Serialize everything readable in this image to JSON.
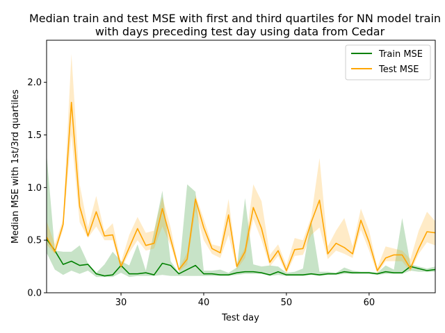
{
  "chart_data": {
    "type": "line",
    "title_line1": "Median train and test MSE with first and third quartiles for NN model train",
    "title_line2": "with days preceding test day using data from Cedar",
    "xlabel": "Test day",
    "ylabel": "Median MSE with 1st/3rd quartiles",
    "xlim": [
      21,
      68
    ],
    "ylim": [
      0,
      2.4
    ],
    "xticks": [
      30,
      40,
      50,
      60
    ],
    "yticks": [
      0.0,
      0.5,
      1.0,
      1.5,
      2.0
    ],
    "xtick_labels": [
      "30",
      "40",
      "50",
      "60"
    ],
    "ytick_labels": [
      "0.0",
      "0.5",
      "1.0",
      "1.5",
      "2.0"
    ],
    "legend_position": "top-right",
    "grid": false,
    "x": [
      21,
      22,
      23,
      24,
      25,
      26,
      27,
      28,
      29,
      30,
      31,
      32,
      33,
      34,
      35,
      36,
      37,
      38,
      39,
      40,
      41,
      42,
      43,
      44,
      45,
      46,
      47,
      48,
      49,
      50,
      51,
      52,
      53,
      54,
      55,
      56,
      57,
      58,
      59,
      60,
      61,
      62,
      63,
      64,
      65,
      66,
      67,
      68
    ],
    "series": [
      {
        "name": "Train MSE",
        "color": "#008000",
        "fill_color": "#008000",
        "median": [
          0.51,
          0.4,
          0.27,
          0.3,
          0.26,
          0.27,
          0.18,
          0.16,
          0.17,
          0.26,
          0.18,
          0.18,
          0.19,
          0.17,
          0.28,
          0.26,
          0.18,
          0.22,
          0.26,
          0.18,
          0.18,
          0.17,
          0.17,
          0.19,
          0.2,
          0.2,
          0.19,
          0.17,
          0.2,
          0.17,
          0.17,
          0.17,
          0.18,
          0.17,
          0.18,
          0.18,
          0.2,
          0.19,
          0.19,
          0.19,
          0.18,
          0.2,
          0.19,
          0.19,
          0.25,
          0.23,
          0.21,
          0.22
        ],
        "q1": [
          0.38,
          0.22,
          0.17,
          0.21,
          0.18,
          0.21,
          0.15,
          0.15,
          0.15,
          0.19,
          0.15,
          0.16,
          0.16,
          0.16,
          0.17,
          0.16,
          0.16,
          0.16,
          0.16,
          0.16,
          0.16,
          0.16,
          0.16,
          0.17,
          0.18,
          0.18,
          0.18,
          0.16,
          0.17,
          0.16,
          0.16,
          0.16,
          0.17,
          0.16,
          0.17,
          0.17,
          0.18,
          0.18,
          0.18,
          0.18,
          0.17,
          0.18,
          0.18,
          0.18,
          0.21,
          0.2,
          0.2,
          0.2
        ],
        "q3": [
          1.32,
          0.4,
          0.39,
          0.39,
          0.45,
          0.28,
          0.19,
          0.27,
          0.39,
          0.3,
          0.26,
          0.46,
          0.21,
          0.58,
          0.97,
          0.3,
          0.19,
          1.03,
          0.96,
          0.21,
          0.21,
          0.22,
          0.19,
          0.24,
          0.9,
          0.27,
          0.25,
          0.26,
          0.25,
          0.19,
          0.2,
          0.23,
          0.69,
          0.2,
          0.2,
          0.19,
          0.24,
          0.21,
          0.2,
          0.2,
          0.19,
          0.26,
          0.22,
          0.71,
          0.27,
          0.25,
          0.23,
          0.25
        ]
      },
      {
        "name": "Test MSE",
        "color": "#ffa500",
        "fill_color": "#ffa500",
        "median": [
          0.53,
          0.39,
          0.65,
          1.81,
          0.82,
          0.54,
          0.77,
          0.54,
          0.55,
          0.25,
          0.43,
          0.61,
          0.45,
          0.47,
          0.8,
          0.51,
          0.22,
          0.32,
          0.89,
          0.62,
          0.42,
          0.38,
          0.74,
          0.25,
          0.39,
          0.81,
          0.61,
          0.29,
          0.4,
          0.21,
          0.41,
          0.42,
          0.67,
          0.88,
          0.37,
          0.47,
          0.43,
          0.37,
          0.69,
          0.48,
          0.21,
          0.33,
          0.36,
          0.36,
          0.23,
          0.42,
          0.58,
          0.57
        ],
        "q1": [
          0.46,
          0.37,
          0.6,
          1.5,
          0.67,
          0.52,
          0.63,
          0.5,
          0.5,
          0.22,
          0.38,
          0.5,
          0.4,
          0.42,
          0.63,
          0.45,
          0.2,
          0.27,
          0.78,
          0.5,
          0.37,
          0.33,
          0.55,
          0.22,
          0.33,
          0.7,
          0.5,
          0.25,
          0.35,
          0.18,
          0.35,
          0.36,
          0.55,
          0.62,
          0.32,
          0.4,
          0.37,
          0.33,
          0.6,
          0.4,
          0.18,
          0.3,
          0.3,
          0.3,
          0.2,
          0.37,
          0.48,
          0.45
        ],
        "q3": [
          0.68,
          0.46,
          0.7,
          2.27,
          1.03,
          0.62,
          0.92,
          0.58,
          0.66,
          0.29,
          0.55,
          0.72,
          0.57,
          0.59,
          0.91,
          0.62,
          0.23,
          0.38,
          0.93,
          0.7,
          0.46,
          0.44,
          0.89,
          0.28,
          0.43,
          1.03,
          0.87,
          0.36,
          0.46,
          0.26,
          0.52,
          0.5,
          0.72,
          1.28,
          0.44,
          0.59,
          0.71,
          0.44,
          0.8,
          0.59,
          0.24,
          0.44,
          0.42,
          0.4,
          0.32,
          0.59,
          0.77,
          0.68
        ]
      }
    ]
  }
}
